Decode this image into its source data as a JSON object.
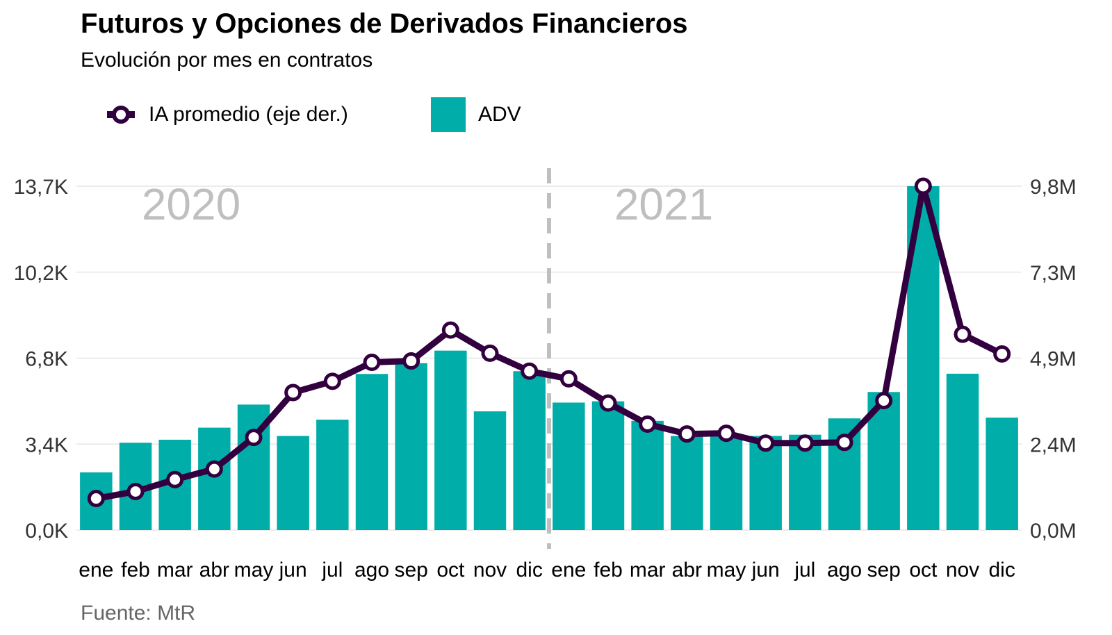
{
  "title": "Futuros y Opciones de Derivados Financieros",
  "subtitle": "Evolución por mes en contratos",
  "source": "Fuente: MtR",
  "colors": {
    "bar": "#00ADA8",
    "line": "#33003F",
    "marker_fill": "#FFFFFF",
    "year_label": "#BFBFBF",
    "divider": "#BFBFBF",
    "grid": "#E6E6E6"
  },
  "chart_data": {
    "type": "bar",
    "categories": [
      "ene",
      "feb",
      "mar",
      "abr",
      "may",
      "jun",
      "jul",
      "ago",
      "sep",
      "oct",
      "nov",
      "dic",
      "ene",
      "feb",
      "mar",
      "abr",
      "may",
      "jun",
      "jul",
      "ago",
      "sep",
      "oct",
      "nov",
      "dic"
    ],
    "year_labels": [
      "2020",
      "2021"
    ],
    "series": [
      {
        "name": "ADV",
        "type": "bar",
        "axis": "left",
        "values": [
          2300,
          3480,
          3600,
          4080,
          5000,
          3750,
          4400,
          6220,
          6650,
          7150,
          4730,
          6330,
          5080,
          5130,
          4350,
          3750,
          3780,
          3750,
          3800,
          4450,
          5500,
          13700,
          6230,
          4480
        ]
      },
      {
        "name": "IA promedio (eje der.)",
        "type": "line",
        "axis": "right",
        "values": [
          900000,
          1100000,
          1440000,
          1740000,
          2640000,
          3920000,
          4240000,
          4780000,
          4820000,
          5700000,
          5040000,
          4530000,
          4310000,
          3620000,
          3020000,
          2740000,
          2760000,
          2480000,
          2480000,
          2500000,
          3690000,
          9800000,
          5580000,
          5020000
        ]
      }
    ],
    "y_left": {
      "ylim": [
        0,
        13700
      ],
      "ticks": [
        "0,0K",
        "3,4K",
        "6,8K",
        "10,2K",
        "13,7K"
      ]
    },
    "y_right": {
      "ylim": [
        0,
        9800000
      ],
      "ticks": [
        "0,0M",
        "2,4M",
        "4,9M",
        "7,3M",
        "9,8M"
      ]
    },
    "legend": {
      "position": "top-left"
    },
    "grid": true
  }
}
